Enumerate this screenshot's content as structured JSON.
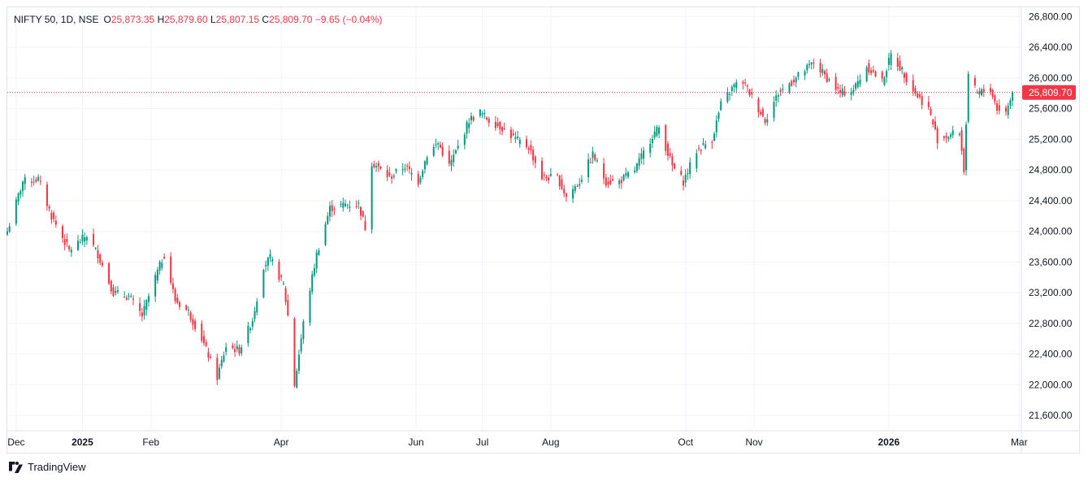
{
  "header": {
    "symbol": "NIFTY 50, 1D, NSE",
    "open_label": "O",
    "open_value": "25,873.35",
    "high_label": "H",
    "high_value": "25,879.60",
    "low_label": "L",
    "low_value": "25,807.15",
    "close_label": "C",
    "close_value": "25,809.70",
    "change": "−9.65 (−0.04%)"
  },
  "footer": {
    "brand": "TradingView",
    "brand_icon": "tradingview-logo-icon"
  },
  "colors": {
    "up": "#089981",
    "down": "#f23645",
    "grid": "#f0f3fa",
    "axis_text": "#131722"
  },
  "chart_data": {
    "type": "candlestick",
    "title": "NIFTY 50, 1D, NSE",
    "price_axis": {
      "ticks": [
        21600,
        22000,
        22400,
        22800,
        23200,
        23600,
        24000,
        24400,
        24800,
        25200,
        25600,
        26000,
        26400,
        26800
      ],
      "tick_labels": [
        "21,600.00",
        "22,000.00",
        "22,400.00",
        "22,800.00",
        "23,200.00",
        "23,600.00",
        "24,000.00",
        "24,400.00",
        "24,800.00",
        "25,200.00",
        "25,600.00",
        "26,000.00",
        "26,400.00",
        "26,800.00"
      ],
      "range": [
        21400,
        26920
      ]
    },
    "last_price": 25809.7,
    "last_price_label": "25,809.70",
    "time_axis": {
      "labels": [
        {
          "text": "Dec",
          "date": "2024-12-02",
          "bold": false
        },
        {
          "text": "2025",
          "date": "2025-01-01",
          "bold": true
        },
        {
          "text": "Feb",
          "date": "2025-02-01",
          "bold": false
        },
        {
          "text": "Apr",
          "date": "2025-04-01",
          "bold": false
        },
        {
          "text": "Jun",
          "date": "2025-06-01",
          "bold": false
        },
        {
          "text": "Jul",
          "date": "2025-07-01",
          "bold": false
        },
        {
          "text": "Aug",
          "date": "2025-08-01",
          "bold": false
        },
        {
          "text": "Oct",
          "date": "2025-10-01",
          "bold": false
        },
        {
          "text": "Nov",
          "date": "2025-11-01",
          "bold": false
        },
        {
          "text": "2026",
          "date": "2026-01-01",
          "bold": true
        },
        {
          "text": "Mar",
          "date": "2026-03-01",
          "bold": false
        }
      ],
      "range": [
        "2024-11-28",
        "2026-03-02"
      ]
    },
    "close_anchors": [
      [
        "2024-11-28",
        24000
      ],
      [
        "2024-12-05",
        24650
      ],
      [
        "2024-12-12",
        24680
      ],
      [
        "2024-12-18",
        24200
      ],
      [
        "2024-12-26",
        23750
      ],
      [
        "2025-01-03",
        23950
      ],
      [
        "2025-01-08",
        23700
      ],
      [
        "2025-01-15",
        23200
      ],
      [
        "2025-01-22",
        23150
      ],
      [
        "2025-01-28",
        22900
      ],
      [
        "2025-02-03",
        23400
      ],
      [
        "2025-02-07",
        23700
      ],
      [
        "2025-02-12",
        23100
      ],
      [
        "2025-02-18",
        22950
      ],
      [
        "2025-02-24",
        22600
      ],
      [
        "2025-03-03",
        22100
      ],
      [
        "2025-03-07",
        22500
      ],
      [
        "2025-03-13",
        22450
      ],
      [
        "2025-03-19",
        22850
      ],
      [
        "2025-03-24",
        23550
      ],
      [
        "2025-03-27",
        23650
      ],
      [
        "2025-04-02",
        23300
      ],
      [
        "2025-04-04",
        22900
      ],
      [
        "2025-04-07",
        22000
      ],
      [
        "2025-04-11",
        22800
      ],
      [
        "2025-04-17",
        23700
      ],
      [
        "2025-04-23",
        24300
      ],
      [
        "2025-04-30",
        24350
      ],
      [
        "2025-05-06",
        24350
      ],
      [
        "2025-05-09",
        24050
      ],
      [
        "2025-05-12",
        24900
      ],
      [
        "2025-05-20",
        24700
      ],
      [
        "2025-05-27",
        24850
      ],
      [
        "2025-06-02",
        24650
      ],
      [
        "2025-06-06",
        25000
      ],
      [
        "2025-06-11",
        25150
      ],
      [
        "2025-06-16",
        24850
      ],
      [
        "2025-06-20",
        25100
      ],
      [
        "2025-06-25",
        25450
      ],
      [
        "2025-06-30",
        25550
      ],
      [
        "2025-07-04",
        25450
      ],
      [
        "2025-07-10",
        25350
      ],
      [
        "2025-07-16",
        25200
      ],
      [
        "2025-07-22",
        25100
      ],
      [
        "2025-07-28",
        24700
      ],
      [
        "2025-08-04",
        24700
      ],
      [
        "2025-08-08",
        24450
      ],
      [
        "2025-08-14",
        24650
      ],
      [
        "2025-08-20",
        25000
      ],
      [
        "2025-08-26",
        24650
      ],
      [
        "2025-09-01",
        24650
      ],
      [
        "2025-09-08",
        24800
      ],
      [
        "2025-09-16",
        25250
      ],
      [
        "2025-09-19",
        25350
      ],
      [
        "2025-09-25",
        24850
      ],
      [
        "2025-09-30",
        24650
      ],
      [
        "2025-10-06",
        25050
      ],
      [
        "2025-10-13",
        25200
      ],
      [
        "2025-10-17",
        25650
      ],
      [
        "2025-10-23",
        25900
      ],
      [
        "2025-10-27",
        25950
      ],
      [
        "2025-10-31",
        25750
      ],
      [
        "2025-11-06",
        25450
      ],
      [
        "2025-11-12",
        25800
      ],
      [
        "2025-11-18",
        25950
      ],
      [
        "2025-11-24",
        26100
      ],
      [
        "2025-11-28",
        26200
      ],
      [
        "2025-12-04",
        26000
      ],
      [
        "2025-12-10",
        25800
      ],
      [
        "2025-12-16",
        25850
      ],
      [
        "2025-12-22",
        26150
      ],
      [
        "2025-12-29",
        25950
      ],
      [
        "2026-01-02",
        26300
      ],
      [
        "2026-01-07",
        26100
      ],
      [
        "2026-01-13",
        25800
      ],
      [
        "2026-01-19",
        25600
      ],
      [
        "2026-01-23",
        25200
      ],
      [
        "2026-01-28",
        25250
      ],
      [
        "2026-02-02",
        25300
      ],
      [
        "2026-02-04",
        24800
      ],
      [
        "2026-02-06",
        26000
      ],
      [
        "2026-02-10",
        25800
      ],
      [
        "2026-02-16",
        25850
      ],
      [
        "2026-02-19",
        25600
      ],
      [
        "2026-02-23",
        25550
      ],
      [
        "2026-02-26",
        25810
      ]
    ]
  }
}
